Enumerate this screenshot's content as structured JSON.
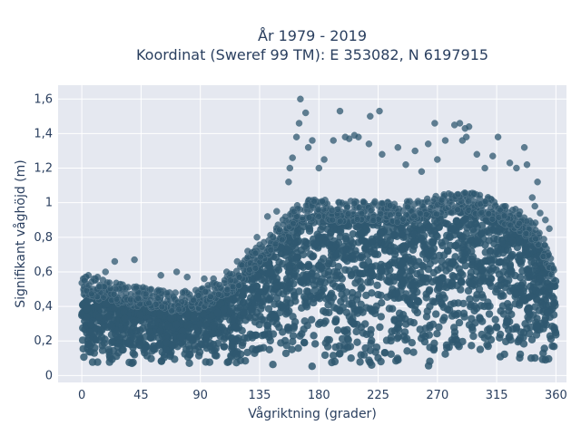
{
  "chart_data": {
    "type": "scatter",
    "title": "År 1979 - 2019",
    "subtitle": "Koordinat (Sweref 99 TM): E 353082, N 6197915",
    "xlabel": "Vågriktning (grader)",
    "ylabel": "Signifikant våghöjd (m)",
    "xlim": [
      -18,
      368
    ],
    "ylim": [
      -0.04,
      1.68
    ],
    "x_ticks": [
      0,
      45,
      90,
      135,
      180,
      225,
      270,
      315,
      360
    ],
    "x_tick_labels": [
      "0",
      "45",
      "90",
      "135",
      "180",
      "225",
      "270",
      "315",
      "360"
    ],
    "y_ticks": [
      0,
      0.2,
      0.4,
      0.6,
      0.8,
      1.0,
      1.2,
      1.4,
      1.6
    ],
    "y_tick_labels": [
      "0",
      "0,2",
      "0,4",
      "0,6",
      "0,8",
      "1",
      "1,2",
      "1,4",
      "1,6"
    ],
    "grid": true,
    "marker_color": "#2f5870",
    "plot_bg": "#e5e8f0",
    "envelope": {
      "x": [
        0,
        15,
        30,
        45,
        60,
        75,
        90,
        105,
        120,
        135,
        150,
        165,
        180,
        195,
        210,
        225,
        240,
        255,
        270,
        285,
        300,
        315,
        330,
        345,
        360
      ],
      "y_min": [
        0.06,
        0.06,
        0.06,
        0.06,
        0.06,
        0.06,
        0.06,
        0.05,
        0.05,
        0.04,
        0.03,
        0.02,
        0.03,
        0.03,
        0.04,
        0.04,
        0.04,
        0.04,
        0.04,
        0.04,
        0.05,
        0.05,
        0.05,
        0.06,
        0.06
      ],
      "y_dense_max": [
        0.5,
        0.47,
        0.45,
        0.43,
        0.41,
        0.4,
        0.42,
        0.47,
        0.55,
        0.68,
        0.8,
        0.92,
        0.95,
        0.92,
        0.93,
        0.93,
        0.92,
        0.93,
        0.96,
        0.98,
        0.97,
        0.93,
        0.88,
        0.8,
        0.56
      ]
    },
    "outliers": [
      {
        "x": 166,
        "y": 1.6
      },
      {
        "x": 170,
        "y": 1.52
      },
      {
        "x": 165,
        "y": 1.46
      },
      {
        "x": 163,
        "y": 1.38
      },
      {
        "x": 175,
        "y": 1.36
      },
      {
        "x": 172,
        "y": 1.32
      },
      {
        "x": 196,
        "y": 1.53
      },
      {
        "x": 219,
        "y": 1.5
      },
      {
        "x": 226,
        "y": 1.53
      },
      {
        "x": 200,
        "y": 1.38
      },
      {
        "x": 207,
        "y": 1.39
      },
      {
        "x": 210,
        "y": 1.38
      },
      {
        "x": 191,
        "y": 1.36
      },
      {
        "x": 203,
        "y": 1.37
      },
      {
        "x": 218,
        "y": 1.34
      },
      {
        "x": 228,
        "y": 1.28
      },
      {
        "x": 240,
        "y": 1.32
      },
      {
        "x": 253,
        "y": 1.3
      },
      {
        "x": 263,
        "y": 1.34
      },
      {
        "x": 268,
        "y": 1.46
      },
      {
        "x": 276,
        "y": 1.36
      },
      {
        "x": 283,
        "y": 1.45
      },
      {
        "x": 287,
        "y": 1.46
      },
      {
        "x": 291,
        "y": 1.43
      },
      {
        "x": 292,
        "y": 1.38
      },
      {
        "x": 289,
        "y": 1.36
      },
      {
        "x": 294,
        "y": 1.44
      },
      {
        "x": 300,
        "y": 1.28
      },
      {
        "x": 316,
        "y": 1.38
      },
      {
        "x": 336,
        "y": 1.32
      },
      {
        "x": 325,
        "y": 1.23
      },
      {
        "x": 338,
        "y": 1.22
      },
      {
        "x": 330,
        "y": 1.2
      },
      {
        "x": 346,
        "y": 1.12
      },
      {
        "x": 184,
        "y": 1.25
      },
      {
        "x": 180,
        "y": 1.2
      },
      {
        "x": 246,
        "y": 1.22
      },
      {
        "x": 258,
        "y": 1.18
      },
      {
        "x": 270,
        "y": 1.25
      },
      {
        "x": 306,
        "y": 1.2
      },
      {
        "x": 312,
        "y": 1.27
      },
      {
        "x": 158,
        "y": 1.2
      },
      {
        "x": 157,
        "y": 1.12
      },
      {
        "x": 160,
        "y": 1.26
      },
      {
        "x": 148,
        "y": 0.95
      },
      {
        "x": 141,
        "y": 0.92
      },
      {
        "x": 133,
        "y": 0.8
      },
      {
        "x": 126,
        "y": 0.72
      },
      {
        "x": 118,
        "y": 0.66
      },
      {
        "x": 110,
        "y": 0.6
      },
      {
        "x": 100,
        "y": 0.56
      },
      {
        "x": 93,
        "y": 0.56
      },
      {
        "x": 80,
        "y": 0.57
      },
      {
        "x": 72,
        "y": 0.6
      },
      {
        "x": 60,
        "y": 0.58
      },
      {
        "x": 40,
        "y": 0.67
      },
      {
        "x": 25,
        "y": 0.66
      },
      {
        "x": 18,
        "y": 0.6
      },
      {
        "x": 12,
        "y": 0.57
      },
      {
        "x": 5,
        "y": 0.58
      },
      {
        "x": 2,
        "y": 0.55
      },
      {
        "x": 352,
        "y": 0.9
      },
      {
        "x": 355,
        "y": 0.85
      },
      {
        "x": 358,
        "y": 0.62
      },
      {
        "x": 344,
        "y": 0.98
      },
      {
        "x": 348,
        "y": 0.94
      },
      {
        "x": 342,
        "y": 1.03
      }
    ]
  }
}
